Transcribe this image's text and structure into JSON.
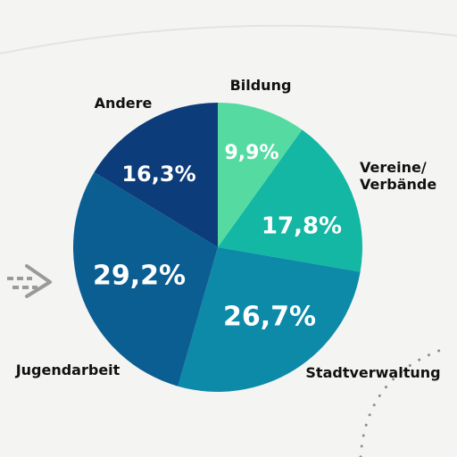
{
  "chart_data": {
    "type": "pie",
    "slices": [
      {
        "name": "Bildung",
        "value": 9.9,
        "label": "9,9%",
        "color": "#55dba2"
      },
      {
        "name": "Vereine/\nVerbände",
        "value": 17.8,
        "label": "17,8%",
        "color": "#13b7a3"
      },
      {
        "name": "Stadtverwaltung",
        "value": 26.7,
        "label": "26,7%",
        "color": "#0c8aa8"
      },
      {
        "name": "Jugendarbeit",
        "value": 29.2,
        "label": "29,2%",
        "color": "#0b5e92"
      },
      {
        "name": "Andere",
        "value": 16.3,
        "label": "16,3%",
        "color": "#0c3c7a"
      }
    ],
    "start": "top, clockwise"
  },
  "decorations": {
    "arrow_color": "#9a9a9a",
    "dotted_line_color": "#8e8e8e"
  }
}
